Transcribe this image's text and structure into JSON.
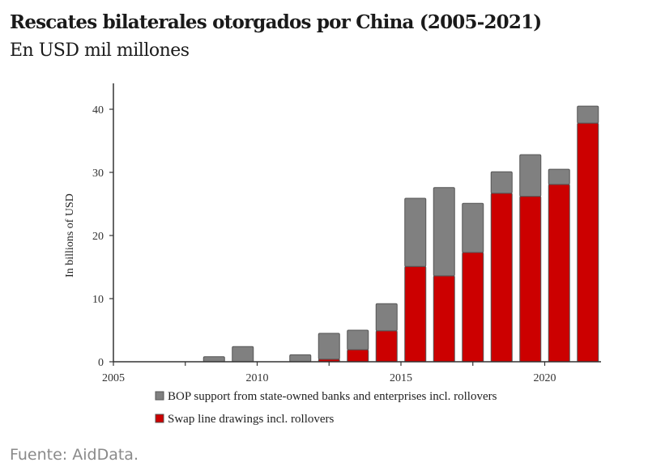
{
  "header": {
    "title": "Rescates bilaterales otorgados por China (2005-2021)",
    "subtitle": "En USD mil millones"
  },
  "footer": {
    "source": "Fuente: AidData."
  },
  "colors": {
    "bop": "#808080",
    "swap": "#cc0000",
    "axis": "#333333"
  },
  "chart_data": {
    "type": "bar",
    "stacked": true,
    "title": "Rescates bilaterales otorgados por China (2005-2021)",
    "subtitle": "En USD mil millones",
    "xlabel": "",
    "ylabel": "In billions of USD",
    "ylim": [
      0,
      44
    ],
    "xlim": [
      2005,
      2022
    ],
    "yticks": [
      0,
      10,
      20,
      30,
      40
    ],
    "ytick_labels": [
      "0",
      "10",
      "20",
      "30",
      "40"
    ],
    "xticks": [
      2005,
      2007.5,
      2010,
      2012.5,
      2015,
      2017.5,
      2020
    ],
    "xtick_labels": [
      "2005",
      "",
      "2010",
      "",
      "2015",
      "",
      "2020"
    ],
    "grid": false,
    "legend_position": "bottom",
    "categories": [
      2005,
      2006,
      2007,
      2008,
      2009,
      2010,
      2011,
      2012,
      2013,
      2014,
      2015,
      2016,
      2017,
      2018,
      2019,
      2020,
      2021
    ],
    "series": [
      {
        "name": "Swap line drawings incl. rollovers",
        "color": "#cc0000",
        "values": [
          0,
          0,
          0,
          0,
          0,
          0,
          0,
          0.4,
          1.9,
          4.9,
          15.1,
          13.6,
          17.3,
          26.7,
          26.2,
          28.1,
          37.8
        ]
      },
      {
        "name": "BOP support from state-owned banks and enterprises incl. rollovers",
        "color": "#808080",
        "values": [
          0,
          0,
          0,
          0.8,
          2.4,
          0,
          1.1,
          4.1,
          3.1,
          4.3,
          10.8,
          14.0,
          7.8,
          3.4,
          6.6,
          2.4,
          2.7
        ]
      }
    ],
    "legend": [
      {
        "label": "BOP support from state-owned banks and enterprises incl. rollovers",
        "color": "#808080"
      },
      {
        "label": "Swap line drawings incl. rollovers",
        "color": "#cc0000"
      }
    ]
  }
}
